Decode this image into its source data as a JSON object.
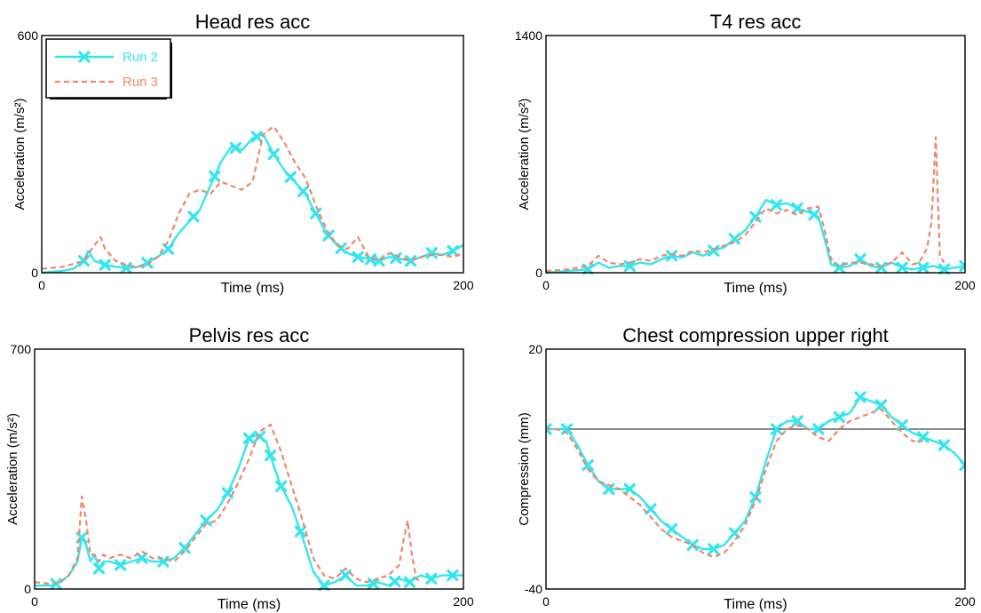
{
  "figure": {
    "colors": {
      "run2": "#33e6ee",
      "run3": "#f0866a",
      "frame": "#000000",
      "zero_line": "#444444"
    },
    "legend": {
      "entries": [
        "Run 2",
        "Run 3"
      ],
      "placement": "top-left",
      "panel": 0
    }
  },
  "chart_data": [
    {
      "type": "line",
      "title": "Head res acc",
      "xlabel": "Time (ms)",
      "ylabel": "Acceleration (m/s²)",
      "xlim": [
        0,
        200
      ],
      "ylim": [
        0,
        600
      ],
      "ytick_labels": [
        "0",
        "600"
      ],
      "xtick_labels": [
        "0",
        "200"
      ],
      "series": [
        {
          "name": "Run 2",
          "style": "solid-markers",
          "x": [
            0,
            10,
            15,
            20,
            22,
            25,
            30,
            35,
            40,
            45,
            50,
            55,
            60,
            65,
            70,
            75,
            80,
            85,
            90,
            95,
            100,
            105,
            110,
            115,
            120,
            125,
            130,
            135,
            140,
            145,
            150,
            155,
            160,
            165,
            170,
            175,
            180,
            185,
            190,
            195,
            200
          ],
          "y": [
            0,
            5,
            10,
            30,
            55,
            30,
            20,
            15,
            12,
            14,
            25,
            40,
            60,
            100,
            130,
            160,
            220,
            280,
            320,
            310,
            340,
            350,
            300,
            260,
            230,
            200,
            150,
            100,
            70,
            50,
            40,
            35,
            30,
            40,
            35,
            30,
            40,
            50,
            45,
            55,
            70
          ],
          "markers_x": [
            20,
            30,
            40,
            50,
            60,
            72,
            82,
            92,
            102,
            110,
            118,
            124,
            130,
            136,
            142,
            150,
            156,
            160,
            168,
            175,
            185,
            195
          ]
        },
        {
          "name": "Run 3",
          "style": "dashed",
          "x": [
            0,
            10,
            20,
            25,
            28,
            30,
            35,
            40,
            45,
            50,
            55,
            60,
            65,
            70,
            75,
            80,
            85,
            90,
            95,
            100,
            105,
            110,
            115,
            120,
            125,
            130,
            135,
            140,
            145,
            150,
            155,
            160,
            165,
            170,
            175,
            180,
            185,
            190,
            195,
            200
          ],
          "y": [
            10,
            15,
            30,
            70,
            90,
            60,
            30,
            20,
            15,
            20,
            40,
            80,
            150,
            200,
            210,
            200,
            230,
            220,
            210,
            230,
            350,
            370,
            330,
            280,
            240,
            170,
            110,
            70,
            60,
            90,
            40,
            30,
            50,
            40,
            30,
            40,
            45,
            45,
            40,
            50
          ]
        }
      ]
    },
    {
      "type": "line",
      "title": "T4 res acc",
      "xlabel": "Time (ms)",
      "ylabel": "Acceleration (m/s²)",
      "xlim": [
        0,
        200
      ],
      "ylim": [
        0,
        1400
      ],
      "ytick_labels": [
        "0",
        "1400"
      ],
      "xtick_labels": [
        "0",
        "200"
      ],
      "series": [
        {
          "name": "Run 2",
          "style": "solid-markers",
          "x": [
            0,
            10,
            20,
            25,
            30,
            35,
            40,
            45,
            50,
            55,
            60,
            65,
            70,
            75,
            80,
            85,
            90,
            95,
            100,
            105,
            110,
            115,
            120,
            125,
            130,
            133,
            136,
            140,
            145,
            150,
            155,
            160,
            165,
            170,
            175,
            180,
            185,
            190,
            195,
            200
          ],
          "y": [
            0,
            10,
            20,
            60,
            30,
            40,
            40,
            60,
            50,
            80,
            100,
            90,
            120,
            100,
            130,
            150,
            200,
            250,
            330,
            430,
            400,
            410,
            380,
            360,
            330,
            200,
            50,
            30,
            40,
            80,
            40,
            30,
            60,
            30,
            20,
            30,
            40,
            20,
            30,
            40
          ],
          "markers_x": [
            20,
            40,
            60,
            80,
            90,
            100,
            110,
            120,
            128,
            140,
            150,
            160,
            170,
            180,
            190,
            200
          ]
        },
        {
          "name": "Run 3",
          "style": "dashed",
          "x": [
            0,
            10,
            20,
            25,
            30,
            35,
            40,
            45,
            50,
            55,
            60,
            65,
            70,
            75,
            80,
            85,
            90,
            95,
            100,
            105,
            110,
            115,
            120,
            125,
            130,
            133,
            136,
            140,
            145,
            150,
            155,
            160,
            165,
            170,
            175,
            178,
            180,
            182,
            184,
            186,
            188,
            190
          ],
          "y": [
            10,
            20,
            40,
            100,
            60,
            50,
            60,
            80,
            70,
            100,
            110,
            100,
            130,
            120,
            140,
            160,
            180,
            220,
            300,
            380,
            350,
            370,
            340,
            380,
            390,
            250,
            80,
            40,
            60,
            60,
            50,
            40,
            60,
            120,
            50,
            60,
            100,
            150,
            300,
            800,
            100,
            60
          ]
        }
      ]
    },
    {
      "type": "line",
      "title": "Pelvis res acc",
      "xlabel": "Time (ms)",
      "ylabel": "Acceleration (m/s²)",
      "xlim": [
        0,
        200
      ],
      "ylim": [
        0,
        700
      ],
      "ytick_labels": [
        "0",
        "700"
      ],
      "xtick_labels": [
        "0",
        "200"
      ],
      "series": [
        {
          "name": "Run 2",
          "style": "solid-markers",
          "x": [
            0,
            8,
            12,
            16,
            20,
            22,
            24,
            26,
            28,
            30,
            32,
            35,
            40,
            45,
            50,
            55,
            60,
            65,
            70,
            75,
            80,
            85,
            90,
            95,
            100,
            104,
            108,
            112,
            115,
            120,
            125,
            130,
            135,
            140,
            145,
            150,
            155,
            160,
            165,
            170,
            175,
            180,
            185,
            190,
            195,
            200
          ],
          "y": [
            10,
            10,
            20,
            40,
            80,
            150,
            130,
            80,
            100,
            60,
            80,
            80,
            70,
            80,
            90,
            80,
            80,
            90,
            120,
            160,
            200,
            230,
            280,
            350,
            440,
            450,
            430,
            350,
            300,
            240,
            150,
            50,
            10,
            20,
            40,
            10,
            10,
            20,
            10,
            30,
            20,
            40,
            30,
            40,
            40,
            40
          ],
          "markers_x": [
            10,
            22,
            30,
            40,
            50,
            60,
            70,
            80,
            90,
            100,
            105,
            110,
            115,
            124,
            135,
            145,
            158,
            168,
            175,
            185,
            195
          ]
        },
        {
          "name": "Run 3",
          "style": "dashed",
          "x": [
            0,
            8,
            12,
            16,
            20,
            22,
            24,
            26,
            28,
            30,
            32,
            35,
            40,
            45,
            50,
            55,
            60,
            65,
            70,
            75,
            80,
            85,
            90,
            95,
            100,
            105,
            110,
            115,
            120,
            125,
            130,
            135,
            140,
            145,
            150,
            155,
            160,
            165,
            170,
            172,
            174,
            176,
            178,
            180
          ],
          "y": [
            20,
            15,
            20,
            40,
            90,
            270,
            200,
            100,
            100,
            80,
            100,
            90,
            100,
            90,
            110,
            90,
            90,
            80,
            110,
            150,
            190,
            200,
            250,
            310,
            380,
            460,
            480,
            400,
            300,
            200,
            90,
            40,
            30,
            60,
            30,
            20,
            30,
            40,
            70,
            140,
            200,
            100,
            30,
            20
          ]
        }
      ]
    },
    {
      "type": "line",
      "title": "Chest compression upper right",
      "xlabel": "Time (ms)",
      "ylabel": "Compression (mm)",
      "xlim": [
        0,
        200
      ],
      "ylim": [
        -40,
        20
      ],
      "ytick_labels": [
        "-40",
        "20"
      ],
      "xtick_labels": [
        "0",
        "200"
      ],
      "reference_line_y": 0,
      "series": [
        {
          "name": "Run 2",
          "style": "solid-markers",
          "x": [
            0,
            5,
            10,
            15,
            20,
            25,
            30,
            35,
            40,
            45,
            50,
            55,
            60,
            65,
            70,
            75,
            80,
            85,
            90,
            95,
            100,
            105,
            110,
            115,
            120,
            125,
            130,
            135,
            140,
            145,
            150,
            155,
            160,
            165,
            170,
            175,
            180,
            185,
            190,
            195,
            200
          ],
          "y": [
            0,
            0,
            0,
            -4,
            -9,
            -13,
            -15,
            -15,
            -15,
            -17,
            -20,
            -23,
            -25,
            -27,
            -29,
            -30,
            -30,
            -29,
            -26,
            -23,
            -17,
            -8,
            0,
            2,
            2,
            0,
            0,
            2,
            3,
            4,
            8,
            7,
            6,
            3,
            1,
            -1,
            -2,
            -3,
            -4,
            -6,
            -9
          ],
          "markers_x": [
            0,
            10,
            20,
            30,
            40,
            50,
            60,
            70,
            80,
            90,
            100,
            110,
            120,
            130,
            140,
            150,
            160,
            170,
            180,
            190,
            200
          ]
        },
        {
          "name": "Run 3",
          "style": "dashed",
          "x": [
            0,
            5,
            10,
            15,
            20,
            25,
            30,
            35,
            40,
            45,
            50,
            55,
            60,
            65,
            70,
            75,
            80,
            85,
            90,
            95,
            100,
            105,
            110,
            115,
            120,
            125,
            130,
            135,
            140,
            145,
            150,
            155,
            160,
            165,
            170,
            175,
            180
          ],
          "y": [
            0,
            0,
            -1,
            -5,
            -10,
            -13,
            -14,
            -15,
            -17,
            -19,
            -22,
            -25,
            -27,
            -28,
            -29,
            -31,
            -32,
            -31,
            -28,
            -24,
            -18,
            -10,
            -3,
            0,
            1,
            0,
            -2,
            -3,
            0,
            2,
            3,
            4,
            5,
            2,
            -1,
            -3,
            -3
          ]
        }
      ]
    }
  ]
}
